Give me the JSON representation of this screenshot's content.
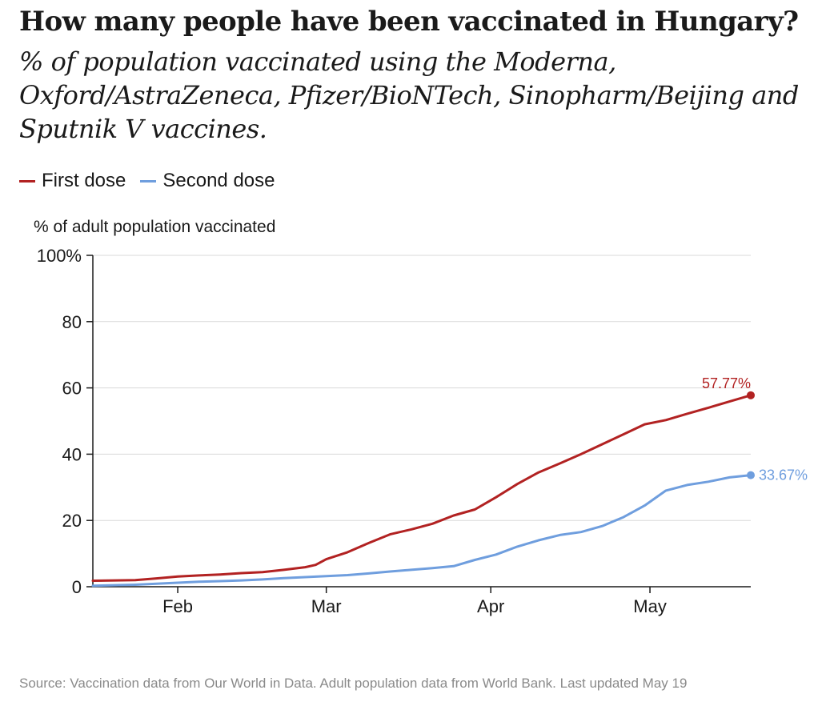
{
  "header": {
    "title": "How many people have been vaccinated in Hungary?",
    "subtitle": "% of population vaccinated using the Moderna, Oxford/AstraZeneca, Pfizer/BioNTech, Sinopharm/Beijing and Sputnik V vaccines."
  },
  "legend": {
    "first_label": "First dose",
    "second_label": "Second dose",
    "first_color": "#b22222",
    "second_color": "#6f9ede"
  },
  "footer": {
    "source": "Source: Vaccination data from Our World in Data. Adult population data from World Bank. Last updated May 19"
  },
  "chart_data": {
    "type": "line",
    "title": "How many people have been vaccinated in Hungary?",
    "ylabel": "% of adult population vaccinated",
    "xlabel": "",
    "ylim": [
      0,
      100
    ],
    "yticks": [
      0,
      20,
      40,
      60,
      80,
      100
    ],
    "ytick_labels": [
      "0",
      "20",
      "40",
      "60",
      "80",
      "100%"
    ],
    "xlim_day": [
      0,
      124
    ],
    "x_unit": "days since Jan 16",
    "xticks": [
      {
        "label": "Feb",
        "day": 16
      },
      {
        "label": "Mar",
        "day": 44
      },
      {
        "label": "Apr",
        "day": 75
      },
      {
        "label": "May",
        "day": 105
      }
    ],
    "series": [
      {
        "name": "First dose",
        "color": "#b22222",
        "end_label": "57.77%",
        "points": [
          [
            0,
            1.8
          ],
          [
            8,
            2.0
          ],
          [
            12,
            2.5
          ],
          [
            16,
            3.1
          ],
          [
            20,
            3.4
          ],
          [
            24,
            3.7
          ],
          [
            28,
            4.1
          ],
          [
            32,
            4.4
          ],
          [
            36,
            5.1
          ],
          [
            40,
            5.9
          ],
          [
            42,
            6.6
          ],
          [
            44,
            8.3
          ],
          [
            48,
            10.4
          ],
          [
            52,
            13.2
          ],
          [
            56,
            15.8
          ],
          [
            60,
            17.3
          ],
          [
            64,
            19.0
          ],
          [
            68,
            21.5
          ],
          [
            72,
            23.3
          ],
          [
            76,
            27.0
          ],
          [
            80,
            31.0
          ],
          [
            84,
            34.5
          ],
          [
            88,
            37.2
          ],
          [
            92,
            40.0
          ],
          [
            96,
            43.0
          ],
          [
            100,
            46.0
          ],
          [
            104,
            49.0
          ],
          [
            108,
            50.3
          ],
          [
            112,
            52.2
          ],
          [
            116,
            54.0
          ],
          [
            120,
            55.9
          ],
          [
            124,
            57.77
          ]
        ]
      },
      {
        "name": "Second dose",
        "color": "#6f9ede",
        "end_label": "33.67%",
        "points": [
          [
            0,
            0.3
          ],
          [
            8,
            0.6
          ],
          [
            12,
            0.9
          ],
          [
            16,
            1.2
          ],
          [
            20,
            1.5
          ],
          [
            24,
            1.7
          ],
          [
            28,
            1.9
          ],
          [
            32,
            2.2
          ],
          [
            36,
            2.6
          ],
          [
            40,
            2.9
          ],
          [
            44,
            3.2
          ],
          [
            48,
            3.5
          ],
          [
            52,
            4.0
          ],
          [
            56,
            4.6
          ],
          [
            60,
            5.1
          ],
          [
            64,
            5.6
          ],
          [
            68,
            6.2
          ],
          [
            72,
            8.1
          ],
          [
            76,
            9.7
          ],
          [
            80,
            12.1
          ],
          [
            84,
            14.0
          ],
          [
            88,
            15.6
          ],
          [
            92,
            16.5
          ],
          [
            96,
            18.3
          ],
          [
            100,
            21.0
          ],
          [
            104,
            24.5
          ],
          [
            108,
            29.0
          ],
          [
            112,
            30.7
          ],
          [
            116,
            31.7
          ],
          [
            120,
            33.0
          ],
          [
            124,
            33.67
          ]
        ]
      }
    ]
  }
}
